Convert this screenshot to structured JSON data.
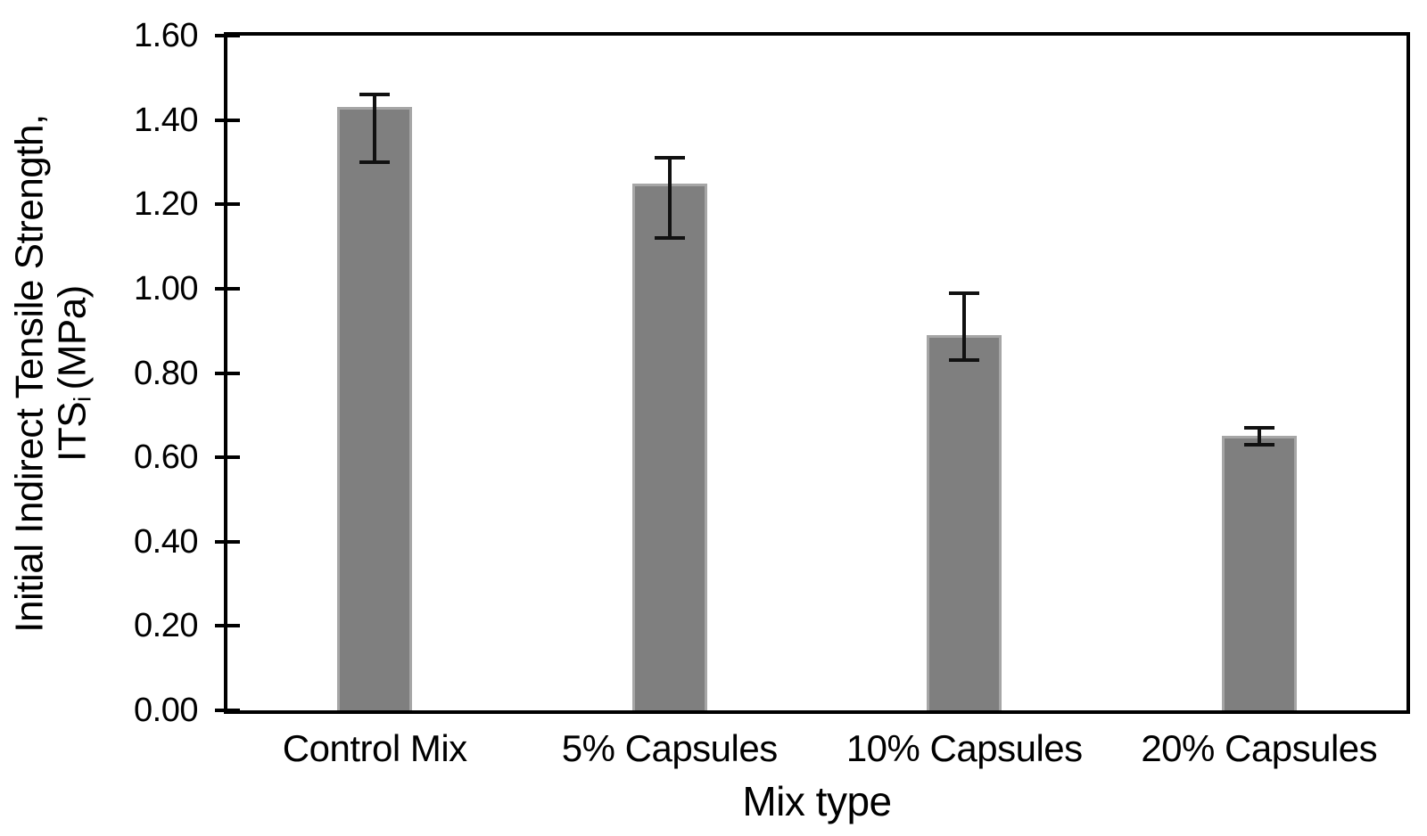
{
  "chart_data": {
    "type": "bar",
    "title": "",
    "categories": [
      "Control Mix",
      "5% Capsules",
      "10% Capsules",
      "20% Capsules"
    ],
    "values": [
      1.43,
      1.25,
      0.89,
      0.65
    ],
    "error_bars": {
      "upper": [
        1.46,
        1.31,
        0.99,
        0.67
      ],
      "lower": [
        1.3,
        1.12,
        0.83,
        0.63
      ]
    },
    "xlabel": "Mix type",
    "ylabel": "Initial Indirect Tensile Strength, ITSi (MPa)",
    "ylim": [
      0,
      1.6
    ],
    "ytick_step": 0.2,
    "ytick_labels": [
      "0.00",
      "0.20",
      "0.40",
      "0.60",
      "0.80",
      "1.00",
      "1.20",
      "1.40",
      "1.60"
    ],
    "grid": false,
    "legend": false,
    "bar_color": "#7f7f7f",
    "bar_edge_color": "#a6a6a6",
    "axis_color": "#000000",
    "error_bar_color": "#111111"
  },
  "y_axis": {
    "title_line1": "Initial Indirect Tensile Strength,",
    "title_line2_prefix": "ITS",
    "title_line2_sub": "i",
    "title_line2_suffix": "(MPa)"
  },
  "x_axis": {
    "title": "Mix type"
  }
}
